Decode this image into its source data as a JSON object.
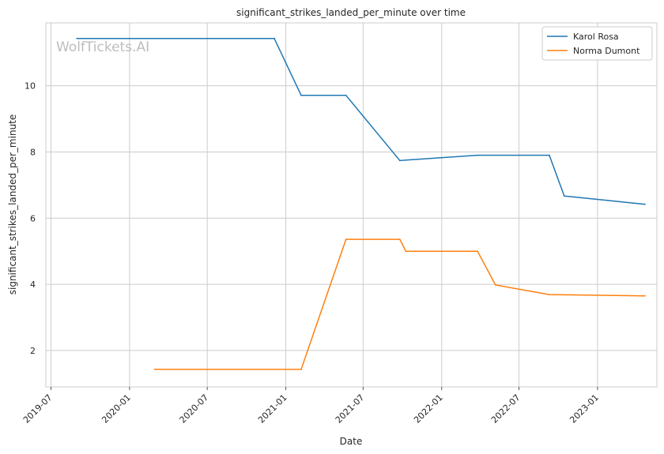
{
  "watermark": "WolfTickets.AI",
  "chart_data": {
    "type": "line",
    "title": "significant_strikes_landed_per_minute over time",
    "xlabel": "Date",
    "ylabel": "significant_strikes_landed_per_minute",
    "x_ticks": [
      "2019-07",
      "2020-01",
      "2020-07",
      "2021-01",
      "2021-07",
      "2022-01",
      "2022-07",
      "2023-01"
    ],
    "y_ticks": [
      2,
      4,
      6,
      8,
      10
    ],
    "ylim": [
      0.9,
      11.9
    ],
    "xlim": [
      "2019-06-19",
      "2023-05-20"
    ],
    "grid": true,
    "legend_position": "top-right",
    "series": [
      {
        "name": "Karol Rosa",
        "color": "#1f77b4",
        "points": [
          {
            "x": "2019-08-31",
            "y": 11.43
          },
          {
            "x": "2020-12-05",
            "y": 11.43
          },
          {
            "x": "2021-02-06",
            "y": 9.71
          },
          {
            "x": "2021-05-22",
            "y": 9.71
          },
          {
            "x": "2021-09-25",
            "y": 7.74
          },
          {
            "x": "2022-03-26",
            "y": 7.9
          },
          {
            "x": "2022-09-10",
            "y": 7.9
          },
          {
            "x": "2022-10-15",
            "y": 6.67
          },
          {
            "x": "2023-04-22",
            "y": 6.42
          }
        ]
      },
      {
        "name": "Norma Dumont",
        "color": "#ff7f0e",
        "points": [
          {
            "x": "2020-02-29",
            "y": 1.43
          },
          {
            "x": "2021-02-06",
            "y": 1.43
          },
          {
            "x": "2021-05-22",
            "y": 5.36
          },
          {
            "x": "2021-09-25",
            "y": 5.36
          },
          {
            "x": "2021-10-09",
            "y": 5.0
          },
          {
            "x": "2022-03-26",
            "y": 5.0
          },
          {
            "x": "2022-05-07",
            "y": 3.98
          },
          {
            "x": "2022-09-10",
            "y": 3.69
          },
          {
            "x": "2023-04-22",
            "y": 3.65
          }
        ]
      }
    ]
  }
}
